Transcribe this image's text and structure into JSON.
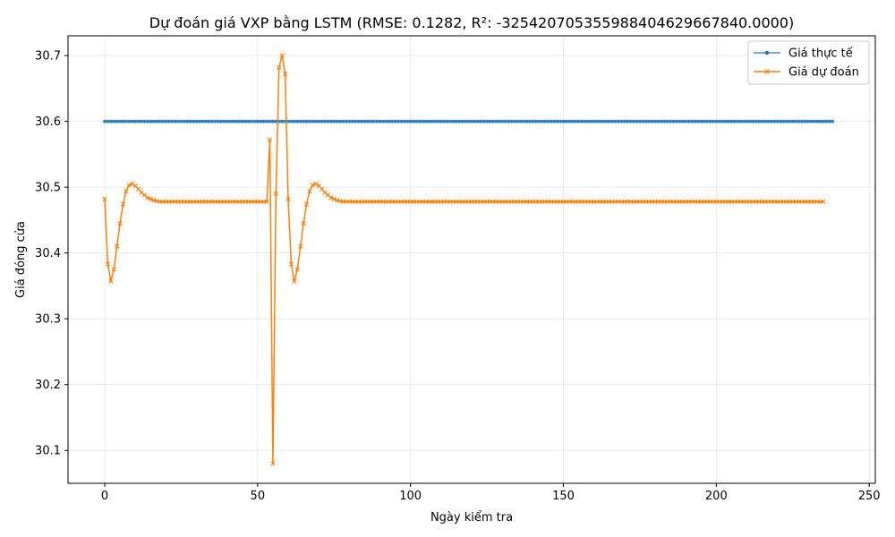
{
  "chart_data": {
    "type": "line",
    "title": "Dự đoán giá VXP bằng LSTM (RMSE: 0.1282, R²: -32542070535598840462966784​0.0000)",
    "xlabel": "Ngày kiểm tra",
    "ylabel": "Giá đóng cửa",
    "xlim": [
      -12,
      252
    ],
    "ylim": [
      30.05,
      30.73
    ],
    "xticks": [
      0,
      50,
      100,
      150,
      200,
      250
    ],
    "xtick_labels": [
      "0",
      "50",
      "100",
      "150",
      "200",
      "250"
    ],
    "yticks": [
      30.1,
      30.2,
      30.3,
      30.4,
      30.5,
      30.6,
      30.7
    ],
    "ytick_labels": [
      "30.1",
      "30.2",
      "30.3",
      "30.4",
      "30.5",
      "30.6",
      "30.7"
    ],
    "grid": true,
    "legend_position": "top-right",
    "n_points": 241,
    "series": [
      {
        "name": "Giá thực tế",
        "color": "#1f77b4",
        "marker": "circle",
        "values": [
          30.6,
          30.6,
          30.6,
          30.6,
          30.6,
          30.6,
          30.6,
          30.6,
          30.6,
          30.6,
          30.6,
          30.6,
          30.6,
          30.6,
          30.6,
          30.6,
          30.6,
          30.6,
          30.6,
          30.6,
          30.6,
          30.6,
          30.6,
          30.6,
          30.6,
          30.6,
          30.6,
          30.6,
          30.6,
          30.6,
          30.6,
          30.6,
          30.6,
          30.6,
          30.6,
          30.6,
          30.6,
          30.6,
          30.6,
          30.6,
          30.6,
          30.6,
          30.6,
          30.6,
          30.6,
          30.6,
          30.6,
          30.6,
          30.6,
          30.6,
          30.6,
          30.6,
          30.6,
          30.6,
          30.6,
          30.6,
          30.6,
          30.6,
          30.6,
          30.6,
          30.6,
          30.6,
          30.6,
          30.6,
          30.6,
          30.6,
          30.6,
          30.6,
          30.6,
          30.6,
          30.6,
          30.6,
          30.6,
          30.6,
          30.6,
          30.6,
          30.6,
          30.6,
          30.6,
          30.6,
          30.6,
          30.6,
          30.6,
          30.6,
          30.6,
          30.6,
          30.6,
          30.6,
          30.6,
          30.6,
          30.6,
          30.6,
          30.6,
          30.6,
          30.6,
          30.6,
          30.6,
          30.6,
          30.6,
          30.6,
          30.6,
          30.6,
          30.6,
          30.6,
          30.6,
          30.6,
          30.6,
          30.6,
          30.6,
          30.6,
          30.6,
          30.6,
          30.6,
          30.6,
          30.6,
          30.6,
          30.6,
          30.6,
          30.6,
          30.6,
          30.6,
          30.6,
          30.6,
          30.6,
          30.6,
          30.6,
          30.6,
          30.6,
          30.6,
          30.6,
          30.6,
          30.6,
          30.6,
          30.6,
          30.6,
          30.6,
          30.6,
          30.6,
          30.6,
          30.6,
          30.6,
          30.6,
          30.6,
          30.6,
          30.6,
          30.6,
          30.6,
          30.6,
          30.6,
          30.6,
          30.6,
          30.6,
          30.6,
          30.6,
          30.6,
          30.6,
          30.6,
          30.6,
          30.6,
          30.6,
          30.6,
          30.6,
          30.6,
          30.6,
          30.6,
          30.6,
          30.6,
          30.6,
          30.6,
          30.6,
          30.6,
          30.6,
          30.6,
          30.6,
          30.6,
          30.6,
          30.6,
          30.6,
          30.6,
          30.6,
          30.6,
          30.6,
          30.6,
          30.6,
          30.6,
          30.6,
          30.6,
          30.6,
          30.6,
          30.6,
          30.6,
          30.6,
          30.6,
          30.6,
          30.6,
          30.6,
          30.6,
          30.6,
          30.6,
          30.6,
          30.6,
          30.6,
          30.6,
          30.6,
          30.6,
          30.6,
          30.6,
          30.6,
          30.6,
          30.6,
          30.6,
          30.6,
          30.6,
          30.6,
          30.6,
          30.6,
          30.6,
          30.6,
          30.6,
          30.6,
          30.6,
          30.6,
          30.6,
          30.6,
          30.6,
          30.6,
          30.6,
          30.6,
          30.6,
          30.6,
          30.6,
          30.6,
          30.6,
          30.6,
          30.6,
          30.6,
          30.6,
          30.6,
          30.6
        ]
      },
      {
        "name": "Giá dự đoán",
        "color": "#ff7f0e",
        "marker": "x",
        "values": [
          30.482,
          30.383,
          30.357,
          30.375,
          30.41,
          30.445,
          30.474,
          30.494,
          30.503,
          30.505,
          30.502,
          30.497,
          30.492,
          30.488,
          30.484,
          30.482,
          30.48,
          30.479,
          30.478,
          30.478,
          30.478,
          30.478,
          30.478,
          30.478,
          30.478,
          30.478,
          30.478,
          30.478,
          30.478,
          30.478,
          30.478,
          30.478,
          30.478,
          30.478,
          30.478,
          30.478,
          30.478,
          30.478,
          30.478,
          30.478,
          30.478,
          30.478,
          30.478,
          30.478,
          30.478,
          30.478,
          30.478,
          30.478,
          30.478,
          30.478,
          30.478,
          30.478,
          30.478,
          30.478,
          30.572,
          30.08,
          30.49,
          30.682,
          30.7,
          30.672,
          30.482,
          30.383,
          30.357,
          30.375,
          30.41,
          30.445,
          30.474,
          30.494,
          30.503,
          30.505,
          30.502,
          30.497,
          30.492,
          30.488,
          30.484,
          30.482,
          30.48,
          30.479,
          30.478,
          30.478,
          30.478,
          30.478,
          30.478,
          30.478,
          30.478,
          30.478,
          30.478,
          30.478,
          30.478,
          30.478,
          30.478,
          30.478,
          30.478,
          30.478,
          30.478,
          30.478,
          30.478,
          30.478,
          30.478,
          30.478,
          30.478,
          30.478,
          30.478,
          30.478,
          30.478,
          30.478,
          30.478,
          30.478,
          30.478,
          30.478,
          30.478,
          30.478,
          30.478,
          30.478,
          30.478,
          30.478,
          30.478,
          30.478,
          30.478,
          30.478,
          30.478,
          30.478,
          30.478,
          30.478,
          30.478,
          30.478,
          30.478,
          30.478,
          30.478,
          30.478,
          30.478,
          30.478,
          30.478,
          30.478,
          30.478,
          30.478,
          30.478,
          30.478,
          30.478,
          30.478,
          30.478,
          30.478,
          30.478,
          30.478,
          30.478,
          30.478,
          30.478,
          30.478,
          30.478,
          30.478,
          30.478,
          30.478,
          30.478,
          30.478,
          30.478,
          30.478,
          30.478,
          30.478,
          30.478,
          30.478,
          30.478,
          30.478,
          30.478,
          30.478,
          30.478,
          30.478,
          30.478,
          30.478,
          30.478,
          30.478,
          30.478,
          30.478,
          30.478,
          30.478,
          30.478,
          30.478,
          30.478,
          30.478,
          30.478,
          30.478,
          30.478,
          30.478,
          30.478,
          30.478,
          30.478,
          30.478,
          30.478,
          30.478,
          30.478,
          30.478,
          30.478,
          30.478,
          30.478,
          30.478,
          30.478,
          30.478,
          30.478,
          30.478,
          30.478,
          30.478,
          30.478,
          30.478,
          30.478,
          30.478,
          30.478,
          30.478,
          30.478,
          30.478,
          30.478,
          30.478,
          30.478,
          30.478,
          30.478,
          30.478,
          30.478,
          30.478,
          30.478,
          30.478,
          30.478,
          30.478,
          30.478,
          30.478,
          30.478,
          30.478,
          30.478,
          30.478,
          30.478,
          30.478,
          30.478,
          30.478,
          30.478,
          30.478,
          30.478,
          30.478,
          30.478,
          30.478
        ]
      }
    ]
  }
}
